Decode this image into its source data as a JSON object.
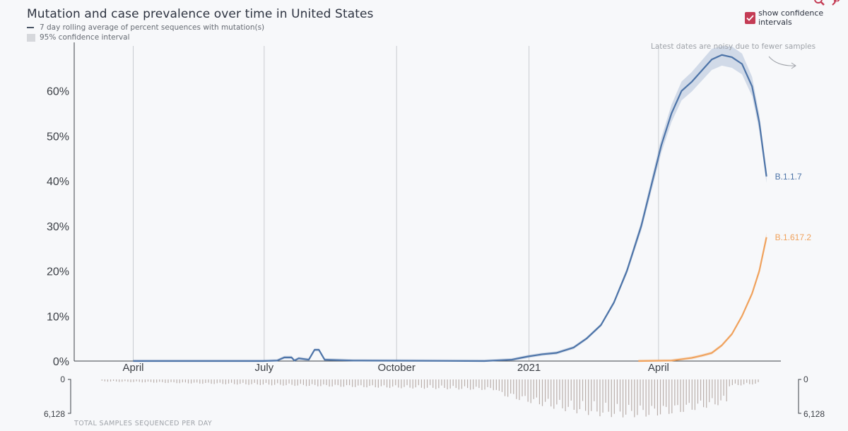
{
  "header": {
    "title": "Mutation and case prevalence over time in United States",
    "legend_line_label": "7 day rolling average of percent sequences with mutation(s)",
    "legend_ci_label": "95% confidence interval"
  },
  "controls": {
    "ci_checkbox_label": "show confidence intervals",
    "ci_checked": true,
    "icons": [
      "zoom-in-icon",
      "reset-zoom-icon"
    ]
  },
  "note": "Latest dates are noisy due to fewer samples",
  "footer": {
    "samples_label": "TOTAL SAMPLES SEQUENCED PER DAY",
    "samples_axis_top": "0",
    "samples_axis_bottom": "6,128"
  },
  "colors": {
    "B.1.1.7": "#4d74a8",
    "B.1.617.2": "#f0a25d",
    "accent": "#c43c55",
    "bars": "#b9aeaa"
  },
  "chart_data": {
    "type": "line",
    "ylabel": "",
    "ylim": [
      0,
      70
    ],
    "yticks": [
      "0%",
      "10%",
      "20%",
      "30%",
      "40%",
      "50%",
      "60%"
    ],
    "xticks": [
      {
        "date": "2020-04-01",
        "label": "April"
      },
      {
        "date": "2020-07-01",
        "label": "July"
      },
      {
        "date": "2020-10-01",
        "label": "October"
      },
      {
        "date": "2021-01-01",
        "label": "2021"
      },
      {
        "date": "2021-04-01",
        "label": "April"
      }
    ],
    "xrange": [
      "2020-02-20",
      "2021-06-25"
    ],
    "grid": "vertical",
    "series": [
      {
        "name": "B.1.1.7",
        "points": [
          [
            "2020-04-01",
            0
          ],
          [
            "2020-06-30",
            0
          ],
          [
            "2020-07-10",
            0.1
          ],
          [
            "2020-07-15",
            0.8
          ],
          [
            "2020-07-20",
            0.8
          ],
          [
            "2020-07-22",
            0.1
          ],
          [
            "2020-07-25",
            0.6
          ],
          [
            "2020-08-01",
            0.3
          ],
          [
            "2020-08-05",
            2.5
          ],
          [
            "2020-08-08",
            2.5
          ],
          [
            "2020-08-12",
            0.3
          ],
          [
            "2020-09-01",
            0.1
          ],
          [
            "2020-12-01",
            0
          ],
          [
            "2020-12-20",
            0.3
          ],
          [
            "2020-12-31",
            1.0
          ],
          [
            "2021-01-10",
            1.5
          ],
          [
            "2021-01-20",
            1.8
          ],
          [
            "2021-02-01",
            3.0
          ],
          [
            "2021-02-10",
            5.0
          ],
          [
            "2021-02-20",
            8.0
          ],
          [
            "2021-03-01",
            13.0
          ],
          [
            "2021-03-10",
            20.0
          ],
          [
            "2021-03-20",
            30.0
          ],
          [
            "2021-03-27",
            39.0
          ],
          [
            "2021-04-03",
            48.0
          ],
          [
            "2021-04-10",
            55.0
          ],
          [
            "2021-04-17",
            60.0
          ],
          [
            "2021-04-24",
            62.0
          ],
          [
            "2021-05-01",
            64.5
          ],
          [
            "2021-05-08",
            67.0
          ],
          [
            "2021-05-15",
            68.0
          ],
          [
            "2021-05-22",
            67.5
          ],
          [
            "2021-05-29",
            66.0
          ],
          [
            "2021-06-05",
            61.0
          ],
          [
            "2021-06-10",
            53.0
          ],
          [
            "2021-06-15",
            41.0
          ]
        ]
      },
      {
        "name": "B.1.617.2",
        "points": [
          [
            "2021-03-18",
            0
          ],
          [
            "2021-04-10",
            0.1
          ],
          [
            "2021-04-24",
            0.7
          ],
          [
            "2021-05-01",
            1.2
          ],
          [
            "2021-05-08",
            1.8
          ],
          [
            "2021-05-15",
            3.5
          ],
          [
            "2021-05-22",
            6.0
          ],
          [
            "2021-05-29",
            10.0
          ],
          [
            "2021-06-05",
            15.0
          ],
          [
            "2021-06-10",
            20.0
          ],
          [
            "2021-06-15",
            27.5
          ]
        ]
      }
    ]
  }
}
